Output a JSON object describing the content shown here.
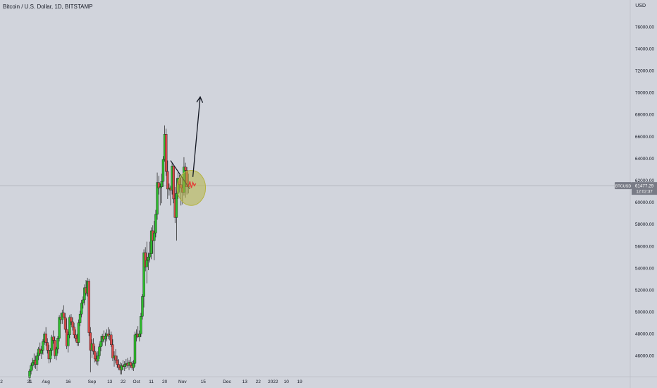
{
  "header": {
    "title": "Bitcoin / U.S. Dollar, 1D, BITSTAMP",
    "currency": "USD"
  },
  "price_tag": {
    "symbol": "BTCUSD",
    "price": "61477.29",
    "countdown": "12:02:37"
  },
  "colors": {
    "background": "#d1d4dc",
    "up": "#26a69a",
    "up_fill": "#2ebd2e",
    "down": "#d94b4b",
    "wick": "#333333",
    "price_tag_bg": "#787b86",
    "price_line": "#9598a1",
    "highlight_circle": "#b5b341",
    "arrow": "#131722",
    "projection": "#e53935"
  },
  "chart_data": {
    "type": "candlestick",
    "title": "Bitcoin / U.S. Dollar, 1D, BITSTAMP",
    "y_unit": "USD",
    "ylim": [
      44600,
      77600
    ],
    "y_ticks": [
      "76000.00",
      "74000.00",
      "72000.00",
      "70000.00",
      "68000.00",
      "66000.00",
      "64000.00",
      "62000.00",
      "60000.00",
      "58000.00",
      "56000.00",
      "54000.00",
      "52000.00",
      "50000.00",
      "48000.00",
      "46000.00"
    ],
    "y_tick_values": [
      76000,
      74000,
      72000,
      70000,
      68000,
      66000,
      64000,
      62000,
      60000,
      58000,
      56000,
      54000,
      52000,
      50000,
      48000,
      46000
    ],
    "x_ticks": [
      {
        "label": "2",
        "date": "2021-07-02"
      },
      {
        "label": "21",
        "date": "2021-07-21"
      },
      {
        "label": "Aug",
        "date": "2021-08-01"
      },
      {
        "label": "16",
        "date": "2021-08-16"
      },
      {
        "label": "Sep",
        "date": "2021-09-01"
      },
      {
        "label": "13",
        "date": "2021-09-13"
      },
      {
        "label": "22",
        "date": "2021-09-22"
      },
      {
        "label": "Oct",
        "date": "2021-10-01"
      },
      {
        "label": "11",
        "date": "2021-10-11"
      },
      {
        "label": "20",
        "date": "2021-10-20"
      },
      {
        "label": "Nov",
        "date": "2021-11-01"
      },
      {
        "label": "15",
        "date": "2021-11-15"
      },
      {
        "label": "Dec",
        "date": "2021-12-01"
      },
      {
        "label": "13",
        "date": "2021-12-13"
      },
      {
        "label": "22",
        "date": "2021-12-22"
      },
      {
        "label": "2022",
        "date": "2022-01-01"
      },
      {
        "label": "10",
        "date": "2022-01-10"
      },
      {
        "label": "19",
        "date": "2022-01-19"
      }
    ],
    "last_price": 61477.29,
    "candles": [
      [
        "2021-07-21",
        44000,
        44800,
        43500,
        44600
      ],
      [
        "2021-07-22",
        44600,
        45300,
        44300,
        45100
      ],
      [
        "2021-07-23",
        45100,
        45800,
        44700,
        45400
      ],
      [
        "2021-07-24",
        45400,
        46200,
        44900,
        45600
      ],
      [
        "2021-07-25",
        45600,
        46000,
        44800,
        45200
      ],
      [
        "2021-07-26",
        45200,
        46300,
        44600,
        46000
      ],
      [
        "2021-07-27",
        46000,
        46800,
        45600,
        46600
      ],
      [
        "2021-07-28",
        46600,
        47200,
        46000,
        46200
      ],
      [
        "2021-07-29",
        46200,
        46900,
        45700,
        46500
      ],
      [
        "2021-07-30",
        46500,
        47500,
        46100,
        47300
      ],
      [
        "2021-07-31",
        47300,
        48200,
        47000,
        48000
      ],
      [
        "2021-08-01",
        48000,
        48600,
        46900,
        47200
      ],
      [
        "2021-08-02",
        47200,
        47600,
        46200,
        46500
      ],
      [
        "2021-08-03",
        46500,
        47000,
        45300,
        45700
      ],
      [
        "2021-08-04",
        45700,
        46700,
        45400,
        46500
      ],
      [
        "2021-08-05",
        46500,
        47900,
        46000,
        47700
      ],
      [
        "2021-08-06",
        47700,
        48300,
        47100,
        47400
      ],
      [
        "2021-08-07",
        47400,
        47800,
        45700,
        46000
      ],
      [
        "2021-08-08",
        46000,
        46800,
        45600,
        46600
      ],
      [
        "2021-08-09",
        46600,
        47800,
        46200,
        47600
      ],
      [
        "2021-08-10",
        47600,
        49700,
        47300,
        49500
      ],
      [
        "2021-08-11",
        49500,
        49900,
        48900,
        49300
      ],
      [
        "2021-08-12",
        49300,
        50200,
        48900,
        49900
      ],
      [
        "2021-08-13",
        49900,
        50600,
        49500,
        49500
      ],
      [
        "2021-08-14",
        49500,
        49900,
        48100,
        48400
      ],
      [
        "2021-08-15",
        48400,
        49400,
        46600,
        46900
      ],
      [
        "2021-08-16",
        46900,
        48200,
        46300,
        47900
      ],
      [
        "2021-08-17",
        47900,
        49700,
        47600,
        49500
      ],
      [
        "2021-08-18",
        49500,
        49800,
        48800,
        49100
      ],
      [
        "2021-08-19",
        49100,
        49500,
        48300,
        48600
      ],
      [
        "2021-08-20",
        48600,
        49000,
        47600,
        47900
      ],
      [
        "2021-08-21",
        47900,
        48400,
        47300,
        47600
      ],
      [
        "2021-08-22",
        47600,
        48000,
        46900,
        47200
      ],
      [
        "2021-08-23",
        47200,
        49300,
        46900,
        49000
      ],
      [
        "2021-08-24",
        49000,
        50100,
        48700,
        49800
      ],
      [
        "2021-08-25",
        49800,
        51100,
        49500,
        50800
      ],
      [
        "2021-08-26",
        50800,
        51400,
        50300,
        51100
      ],
      [
        "2021-08-27",
        51100,
        52500,
        50600,
        52200
      ],
      [
        "2021-08-28",
        52200,
        52900,
        51500,
        51700
      ],
      [
        "2021-08-29",
        51700,
        53100,
        51400,
        52800
      ],
      [
        "2021-08-30",
        52800,
        53000,
        47800,
        48100
      ],
      [
        "2021-08-31",
        48100,
        48600,
        44500,
        46500
      ],
      [
        "2021-09-01",
        46500,
        47500,
        45800,
        47100
      ],
      [
        "2021-09-02",
        47100,
        47600,
        46100,
        46400
      ],
      [
        "2021-09-03",
        46400,
        46900,
        45400,
        45700
      ],
      [
        "2021-09-04",
        45700,
        46300,
        45200,
        45500
      ],
      [
        "2021-09-05",
        45500,
        46400,
        45100,
        46000
      ],
      [
        "2021-09-06",
        46000,
        47100,
        45700,
        46800
      ],
      [
        "2021-09-07",
        46800,
        47800,
        46400,
        47300
      ],
      [
        "2021-09-08",
        47300,
        48000,
        46900,
        47800
      ],
      [
        "2021-09-09",
        47800,
        48300,
        47200,
        47500
      ],
      [
        "2021-09-10",
        47500,
        48100,
        46900,
        47800
      ],
      [
        "2021-09-11",
        47800,
        48400,
        47300,
        48000
      ],
      [
        "2021-09-12",
        48000,
        48600,
        47500,
        47800
      ],
      [
        "2021-09-13",
        47800,
        48400,
        47400,
        47900
      ],
      [
        "2021-09-14",
        47900,
        48200,
        46800,
        47000
      ],
      [
        "2021-09-15",
        47000,
        47500,
        45500,
        45800
      ],
      [
        "2021-09-16",
        45800,
        46400,
        45000,
        46000
      ],
      [
        "2021-09-17",
        46000,
        46600,
        45300,
        45600
      ],
      [
        "2021-09-18",
        45600,
        46000,
        44900,
        45200
      ],
      [
        "2021-09-19",
        45200,
        45700,
        44700,
        44900
      ],
      [
        "2021-09-20",
        44900,
        45400,
        44300,
        44700
      ],
      [
        "2021-09-21",
        44700,
        45300,
        44300,
        45100
      ],
      [
        "2021-09-22",
        45100,
        45600,
        44700,
        45000
      ],
      [
        "2021-09-23",
        45000,
        45500,
        44600,
        45200
      ],
      [
        "2021-09-24",
        45200,
        45700,
        44800,
        45300
      ],
      [
        "2021-09-25",
        45300,
        45800,
        44900,
        45100
      ],
      [
        "2021-09-26",
        45100,
        45600,
        44700,
        45400
      ],
      [
        "2021-09-27",
        45400,
        45900,
        44900,
        45100
      ],
      [
        "2021-09-28",
        45100,
        45500,
        44700,
        44900
      ],
      [
        "2021-09-29",
        44900,
        45600,
        44600,
        45300
      ],
      [
        "2021-09-30",
        45300,
        48200,
        45000,
        47900
      ],
      [
        "2021-10-01",
        47900,
        48400,
        47300,
        48000
      ],
      [
        "2021-10-02",
        48000,
        48700,
        47600,
        47700
      ],
      [
        "2021-10-03",
        47700,
        48300,
        47300,
        48000
      ],
      [
        "2021-10-04",
        48000,
        49900,
        47700,
        49600
      ],
      [
        "2021-10-05",
        49600,
        51600,
        49300,
        51400
      ],
      [
        "2021-10-06",
        51400,
        55700,
        50400,
        55400
      ],
      [
        "2021-10-07",
        55400,
        55900,
        53700,
        54100
      ],
      [
        "2021-10-08",
        54100,
        56400,
        52600,
        54700
      ],
      [
        "2021-10-09",
        54700,
        55400,
        53800,
        55000
      ],
      [
        "2021-10-10",
        55000,
        56400,
        54500,
        55300
      ],
      [
        "2021-10-11",
        55300,
        57700,
        54800,
        57400
      ],
      [
        "2021-10-12",
        57400,
        57900,
        55300,
        56500
      ],
      [
        "2021-10-13",
        56500,
        58300,
        54700,
        57200
      ],
      [
        "2021-10-14",
        57200,
        59300,
        56800,
        58900
      ],
      [
        "2021-10-15",
        58900,
        62700,
        58400,
        61800
      ],
      [
        "2021-10-16",
        61800,
        62400,
        60700,
        61300
      ],
      [
        "2021-10-17",
        61300,
        61700,
        59700,
        61400
      ],
      [
        "2021-10-18",
        61400,
        62600,
        59900,
        61900
      ],
      [
        "2021-10-19",
        61900,
        64200,
        61400,
        63900
      ],
      [
        "2021-10-20",
        63900,
        67000,
        63700,
        66200
      ],
      [
        "2021-10-21",
        66200,
        66700,
        62400,
        62800
      ],
      [
        "2021-10-22",
        62800,
        63800,
        60300,
        61200
      ],
      [
        "2021-10-23",
        61200,
        61700,
        60600,
        61300
      ],
      [
        "2021-10-24",
        61300,
        61500,
        59700,
        61100
      ],
      [
        "2021-10-25",
        61100,
        63600,
        60700,
        63300
      ],
      [
        "2021-10-26",
        63300,
        63300,
        59900,
        60300
      ],
      [
        "2021-10-27",
        60300,
        61400,
        58100,
        58600
      ],
      [
        "2021-10-28",
        58600,
        62200,
        56500,
        60800
      ],
      [
        "2021-10-29",
        60800,
        62700,
        60300,
        62200
      ],
      [
        "2021-10-30",
        62200,
        62500,
        60900,
        61600
      ],
      [
        "2021-10-31",
        61600,
        62400,
        59700,
        61300
      ],
      [
        "2021-11-01",
        61300,
        62200,
        59800,
        60900
      ],
      [
        "2021-11-02",
        60900,
        64100,
        60600,
        63200
      ],
      [
        "2021-11-03",
        63200,
        63600,
        60400,
        62900
      ],
      [
        "2021-11-04",
        62900,
        63200,
        60700,
        61400
      ],
      [
        "2021-11-05",
        61400,
        62600,
        60800,
        61477
      ]
    ],
    "annotations": [
      {
        "type": "trendline",
        "from": {
          "date": "2021-10-24",
          "price": 63800
        },
        "to": {
          "date": "2021-11-06",
          "price": 61200
        }
      },
      {
        "type": "circle",
        "center": {
          "date": "2021-11-06",
          "price": 61300
        },
        "radius_days": 3,
        "radius_price": 1600
      },
      {
        "type": "arrow",
        "from": {
          "date": "2021-11-08",
          "price": 62300
        },
        "to": {
          "date": "2021-11-12",
          "price": 69600
        }
      },
      {
        "type": "projection_path",
        "points": [
          {
            "date": "2021-11-05",
            "price": 61400
          },
          {
            "date": "2021-11-06",
            "price": 61900
          },
          {
            "date": "2021-11-07",
            "price": 61300
          },
          {
            "date": "2021-11-08",
            "price": 61800
          },
          {
            "date": "2021-11-09",
            "price": 61500
          },
          {
            "date": "2021-11-10",
            "price": 61700
          }
        ]
      }
    ]
  }
}
